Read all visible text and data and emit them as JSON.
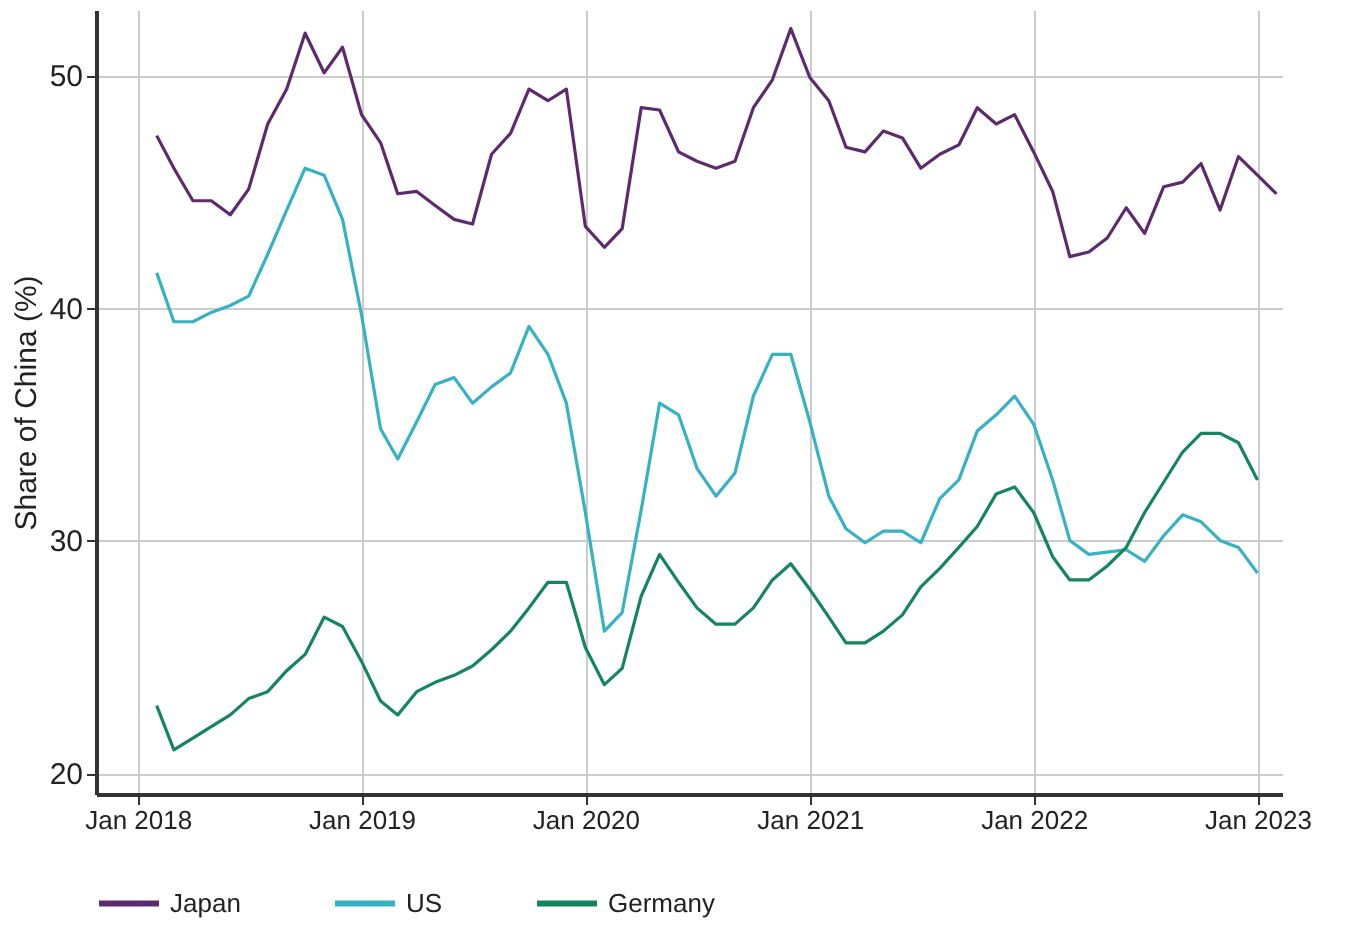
{
  "chart_data": {
    "type": "line",
    "ylabel": "Share of China (%)",
    "xlim": [
      "2017-10-25",
      "2023-02-10"
    ],
    "ylim": [
      19.1,
      52.8
    ],
    "yticks": [
      20,
      30,
      40,
      50
    ],
    "xticks": [
      {
        "value": "2018-01",
        "label": "Jan 2018"
      },
      {
        "value": "2019-01",
        "label": "Jan 2019"
      },
      {
        "value": "2020-01",
        "label": "Jan 2020"
      },
      {
        "value": "2021-01",
        "label": "Jan 2021"
      },
      {
        "value": "2022-01",
        "label": "Jan 2022"
      },
      {
        "value": "2023-01",
        "label": "Jan 2023"
      }
    ],
    "grid": true,
    "legend": "bottom",
    "marker": "none",
    "line_style": "solid",
    "series": [
      {
        "name": "Japan",
        "color": "#5e2a6e",
        "x": [
          "2018-02",
          "2018-03",
          "2018-04",
          "2018-05",
          "2018-06",
          "2018-07",
          "2018-08",
          "2018-09",
          "2018-10",
          "2018-11",
          "2018-12",
          "2019-01",
          "2019-02",
          "2019-03",
          "2019-04",
          "2019-05",
          "2019-06",
          "2019-07",
          "2019-08",
          "2019-09",
          "2019-10",
          "2019-11",
          "2019-12",
          "2020-01",
          "2020-02",
          "2020-03",
          "2020-04",
          "2020-05",
          "2020-06",
          "2020-07",
          "2020-08",
          "2020-09",
          "2020-10",
          "2020-11",
          "2020-12",
          "2021-01",
          "2021-02",
          "2021-03",
          "2021-04",
          "2021-05",
          "2021-06",
          "2021-07",
          "2021-08",
          "2021-09",
          "2021-10",
          "2021-11",
          "2021-12",
          "2022-01",
          "2022-02",
          "2022-03",
          "2022-04",
          "2022-05",
          "2022-06",
          "2022-07",
          "2022-08",
          "2022-09",
          "2022-10",
          "2022-11",
          "2022-12",
          "2023-01",
          "2023-02"
        ],
        "values": [
          47.4,
          46.0,
          44.6,
          44.6,
          44.0,
          45.1,
          47.9,
          49.4,
          51.8,
          50.1,
          51.2,
          48.3,
          47.1,
          44.9,
          45.0,
          44.4,
          43.8,
          43.6,
          46.6,
          47.5,
          49.4,
          48.9,
          49.4,
          43.5,
          42.6,
          43.4,
          48.6,
          48.5,
          46.7,
          46.3,
          46.0,
          46.3,
          48.6,
          49.8,
          52.0,
          49.9,
          48.9,
          46.9,
          46.7,
          47.6,
          47.3,
          46.0,
          46.6,
          47.0,
          48.6,
          47.9,
          48.3,
          46.7,
          45.0,
          42.2,
          42.4,
          43.0,
          44.3,
          43.2,
          45.2,
          45.4,
          46.2,
          44.2,
          46.5,
          45.7,
          44.9
        ]
      },
      {
        "name": "US",
        "color": "#36b2c4",
        "x": [
          "2018-02",
          "2018-03",
          "2018-04",
          "2018-05",
          "2018-06",
          "2018-07",
          "2018-08",
          "2018-09",
          "2018-10",
          "2018-11",
          "2018-12",
          "2019-01",
          "2019-02",
          "2019-03",
          "2019-04",
          "2019-05",
          "2019-06",
          "2019-07",
          "2019-08",
          "2019-09",
          "2019-10",
          "2019-11",
          "2019-12",
          "2020-01",
          "2020-02",
          "2020-03",
          "2020-04",
          "2020-05",
          "2020-06",
          "2020-07",
          "2020-08",
          "2020-09",
          "2020-10",
          "2020-11",
          "2020-12",
          "2021-01",
          "2021-02",
          "2021-03",
          "2021-04",
          "2021-05",
          "2021-06",
          "2021-07",
          "2021-08",
          "2021-09",
          "2021-10",
          "2021-11",
          "2021-12",
          "2022-01",
          "2022-02",
          "2022-03",
          "2022-04",
          "2022-05",
          "2022-06",
          "2022-07",
          "2022-08",
          "2022-09",
          "2022-10",
          "2022-11",
          "2022-12",
          "2023-01"
        ],
        "values": [
          41.5,
          39.4,
          39.4,
          39.8,
          40.1,
          40.5,
          42.3,
          44.2,
          46.0,
          45.7,
          43.8,
          39.7,
          34.8,
          33.5,
          35.1,
          36.7,
          37.0,
          35.9,
          36.6,
          37.2,
          39.2,
          38.0,
          35.9,
          31.2,
          26.1,
          26.9,
          31.3,
          35.9,
          35.4,
          33.1,
          31.9,
          32.9,
          36.2,
          38.0,
          38.0,
          35.1,
          31.9,
          30.5,
          29.9,
          30.4,
          30.4,
          29.9,
          31.8,
          32.6,
          34.7,
          35.4,
          36.2,
          35.0,
          32.6,
          30.0,
          29.4,
          29.5,
          29.6,
          29.1,
          30.2,
          31.1,
          30.8,
          30.0,
          29.7,
          28.6
        ]
      },
      {
        "name": "Germany",
        "color": "#14855e",
        "x": [
          "2018-02",
          "2018-03",
          "2018-04",
          "2018-05",
          "2018-06",
          "2018-07",
          "2018-08",
          "2018-09",
          "2018-10",
          "2018-11",
          "2018-12",
          "2019-01",
          "2019-02",
          "2019-03",
          "2019-04",
          "2019-05",
          "2019-06",
          "2019-07",
          "2019-08",
          "2019-09",
          "2019-10",
          "2019-11",
          "2019-12",
          "2020-01",
          "2020-02",
          "2020-03",
          "2020-04",
          "2020-05",
          "2020-06",
          "2020-07",
          "2020-08",
          "2020-09",
          "2020-10",
          "2020-11",
          "2020-12",
          "2021-01",
          "2021-02",
          "2021-03",
          "2021-04",
          "2021-05",
          "2021-06",
          "2021-07",
          "2021-08",
          "2021-09",
          "2021-10",
          "2021-11",
          "2021-12",
          "2022-01",
          "2022-02",
          "2022-03",
          "2022-04",
          "2022-05",
          "2022-06",
          "2022-07",
          "2022-08",
          "2022-09",
          "2022-10",
          "2022-11",
          "2022-12",
          "2023-01"
        ],
        "values": [
          22.9,
          21.0,
          21.5,
          22.0,
          22.5,
          23.2,
          23.5,
          24.4,
          25.1,
          26.7,
          26.3,
          24.8,
          23.1,
          22.5,
          23.5,
          23.9,
          24.2,
          24.6,
          25.3,
          26.1,
          27.1,
          28.2,
          28.2,
          25.4,
          23.8,
          24.5,
          27.6,
          29.4,
          28.2,
          27.1,
          26.4,
          26.4,
          27.1,
          28.3,
          29.0,
          27.9,
          26.7,
          25.6,
          25.6,
          26.1,
          26.8,
          28.0,
          28.8,
          29.7,
          30.6,
          32.0,
          32.3,
          31.2,
          29.3,
          28.3,
          28.3,
          28.9,
          29.7,
          31.2,
          32.5,
          33.8,
          34.6,
          34.6,
          34.2,
          32.6
        ]
      }
    ]
  }
}
